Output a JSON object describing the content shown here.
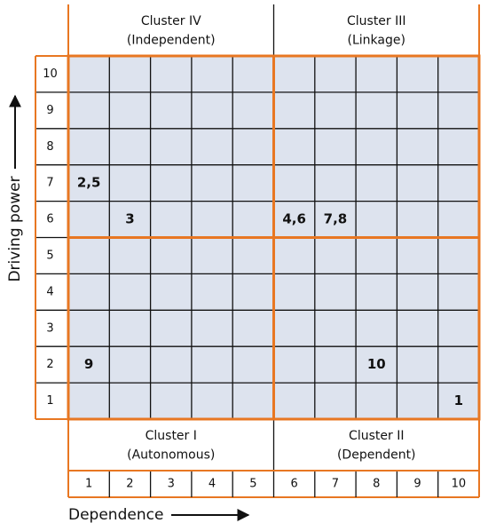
{
  "clusters": [
    {
      "name": "Cluster IV",
      "subtitle": "(Independent)"
    },
    {
      "name": "Cluster III",
      "subtitle": "(Linkage)"
    },
    {
      "name": "Cluster I",
      "subtitle": "(Autonomous)"
    },
    {
      "name": "Cluster II",
      "subtitle": "(Dependent)"
    }
  ],
  "x_axis": {
    "label": "Dependence",
    "ticks": [
      1,
      2,
      3,
      4,
      5,
      6,
      7,
      8,
      9,
      10
    ]
  },
  "y_axis": {
    "label": "Driving power",
    "ticks": [
      1,
      2,
      3,
      4,
      5,
      6,
      7,
      8,
      9,
      10
    ]
  },
  "points": [
    {
      "label": "2,5",
      "x": 1,
      "y": 7
    },
    {
      "label": "3",
      "x": 2,
      "y": 6
    },
    {
      "label": "4,6",
      "x": 6,
      "y": 6
    },
    {
      "label": "7,8",
      "x": 7,
      "y": 6
    },
    {
      "label": "9",
      "x": 1,
      "y": 2
    },
    {
      "label": "10",
      "x": 8,
      "y": 2
    },
    {
      "label": "1",
      "x": 10,
      "y": 1
    }
  ]
}
